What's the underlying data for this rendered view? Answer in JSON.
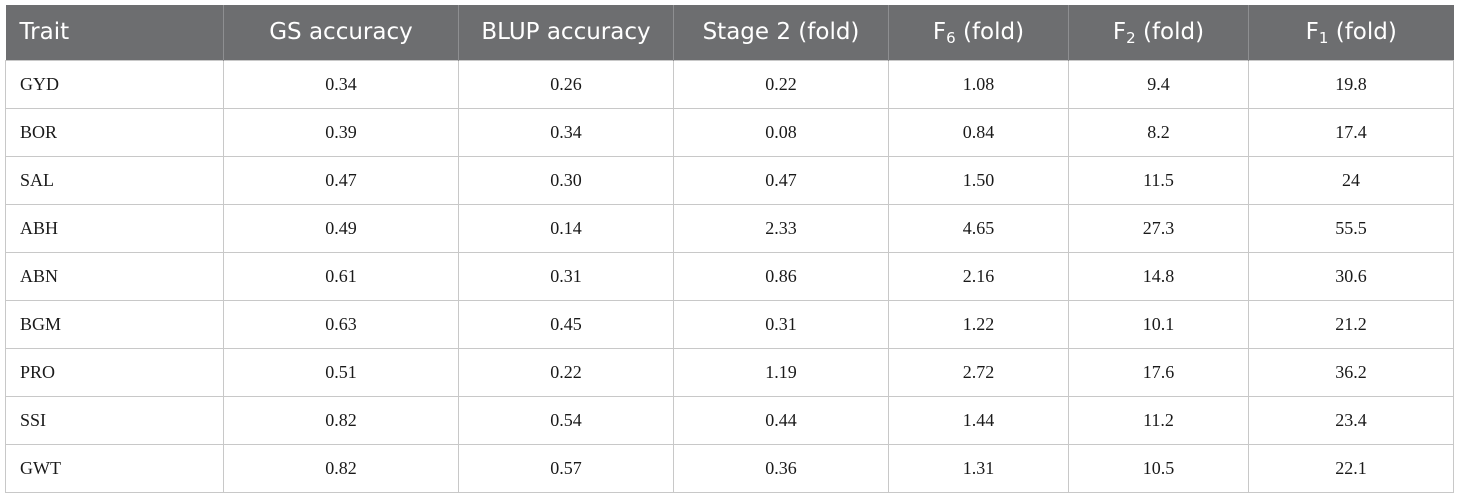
{
  "table": {
    "headers": [
      {
        "text": "Trait",
        "sub": ""
      },
      {
        "text": "GS accuracy",
        "sub": ""
      },
      {
        "text": "BLUP accuracy",
        "sub": ""
      },
      {
        "text": "Stage 2 (fold)",
        "sub": ""
      },
      {
        "text": "F",
        "sub": "6",
        "suffix": " (fold)"
      },
      {
        "text": "F",
        "sub": "2",
        "suffix": " (fold)"
      },
      {
        "text": "F",
        "sub": "1",
        "suffix": " (fold)"
      }
    ],
    "rows": [
      [
        "GYD",
        "0.34",
        "0.26",
        "0.22",
        "1.08",
        "9.4",
        "19.8"
      ],
      [
        "BOR",
        "0.39",
        "0.34",
        "0.08",
        "0.84",
        "8.2",
        "17.4"
      ],
      [
        "SAL",
        "0.47",
        "0.30",
        "0.47",
        "1.50",
        "11.5",
        "24"
      ],
      [
        "ABH",
        "0.49",
        "0.14",
        "2.33",
        "4.65",
        "27.3",
        "55.5"
      ],
      [
        "ABN",
        "0.61",
        "0.31",
        "0.86",
        "2.16",
        "14.8",
        "30.6"
      ],
      [
        "BGM",
        "0.63",
        "0.45",
        "0.31",
        "1.22",
        "10.1",
        "21.2"
      ],
      [
        "PRO",
        "0.51",
        "0.22",
        "1.19",
        "2.72",
        "17.6",
        "36.2"
      ],
      [
        "SSI",
        "0.82",
        "0.54",
        "0.44",
        "1.44",
        "11.2",
        "23.4"
      ],
      [
        "GWT",
        "0.82",
        "0.57",
        "0.36",
        "1.31",
        "10.5",
        "22.1"
      ]
    ]
  },
  "colors": {
    "header_bg": "#6d6e70",
    "header_text": "#ffffff",
    "grid_line": "#c8c8c8",
    "body_text": "#1a1a1a"
  }
}
